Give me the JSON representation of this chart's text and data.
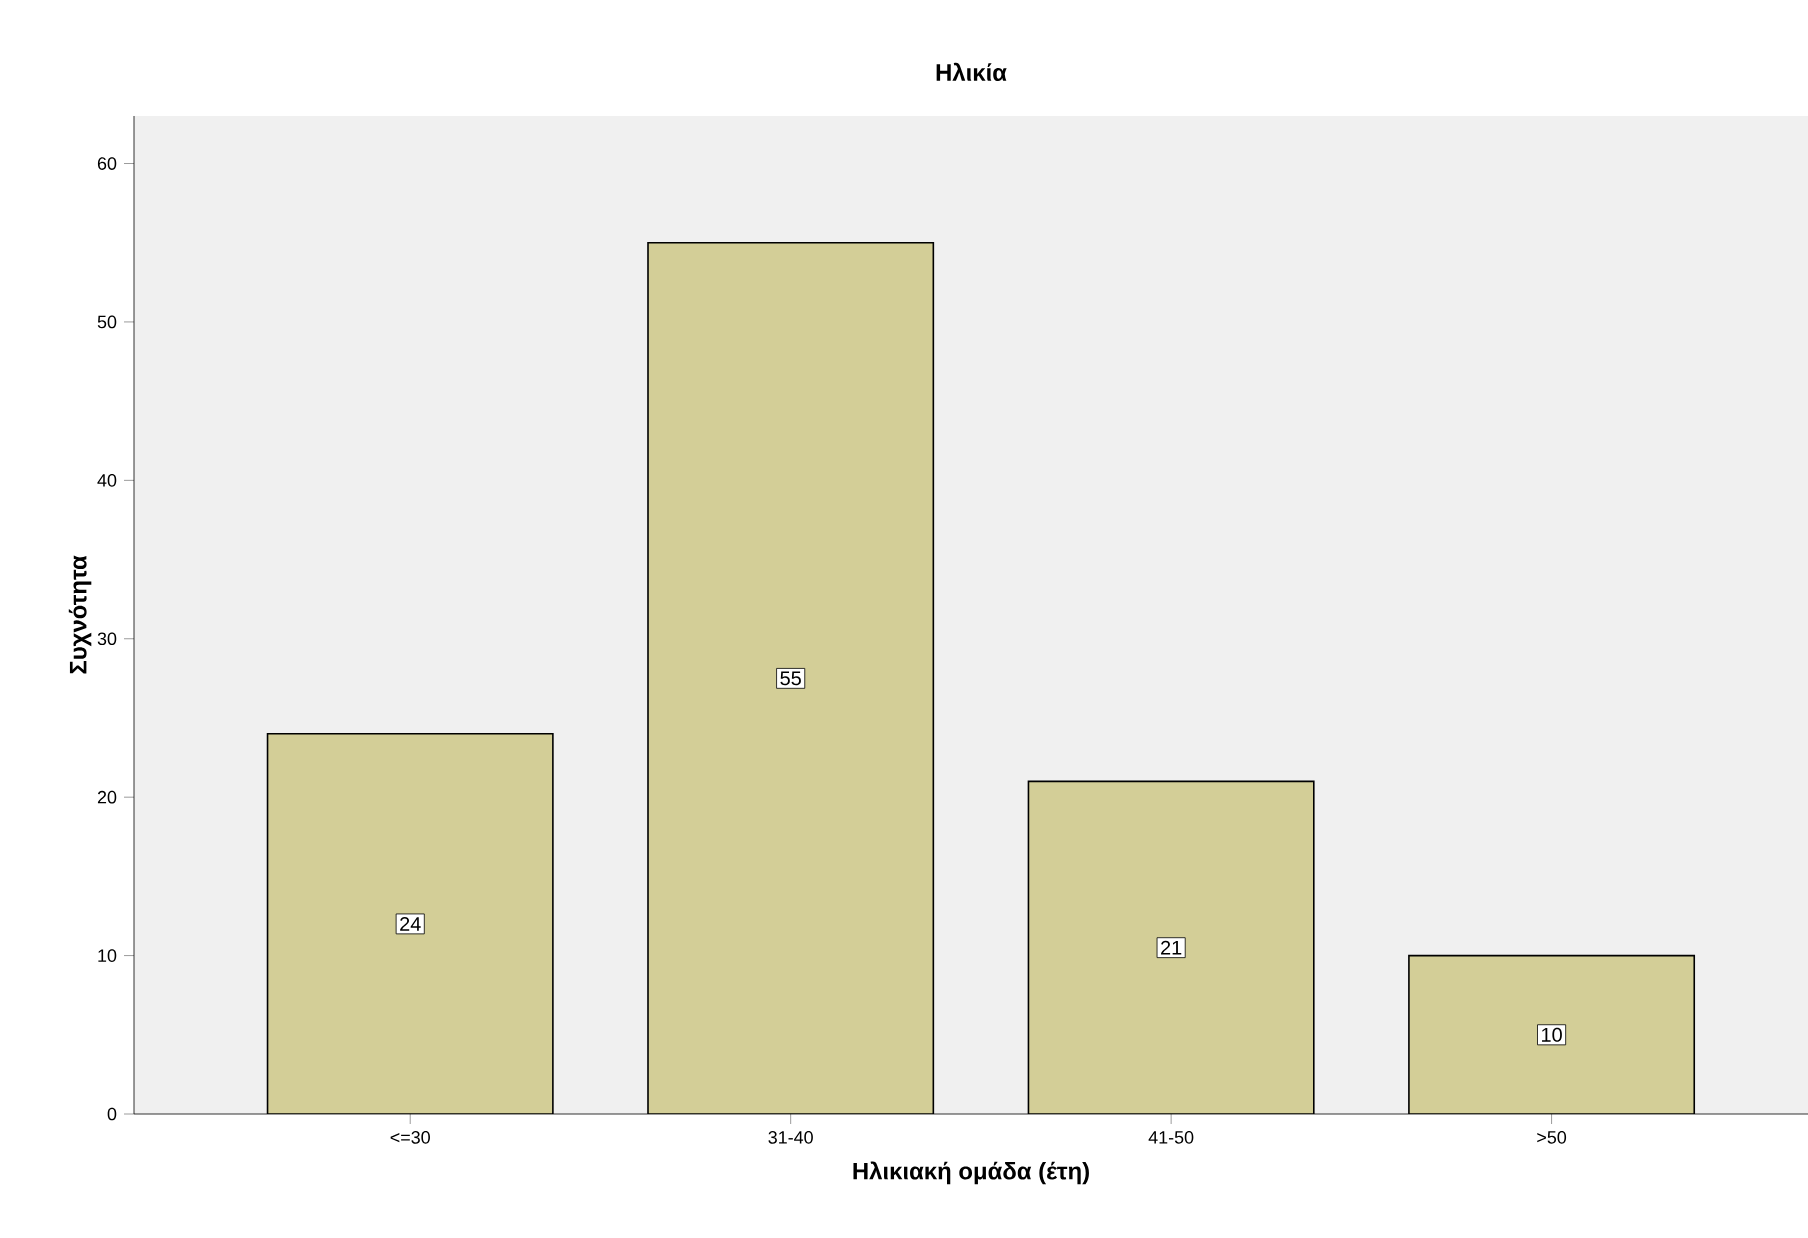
{
  "chart_data": {
    "type": "bar",
    "title": "Ηλικία",
    "xlabel": "Ηλικιακή ομάδα (έτη)",
    "ylabel": "Συχνότητα",
    "categories": [
      "<=30",
      "31-40",
      "41-50",
      ">50"
    ],
    "values": [
      24,
      55,
      21,
      10
    ],
    "value_labels": [
      "24",
      "55",
      "21",
      "10"
    ],
    "color": "#d3ce97",
    "ylim": [
      0,
      63
    ],
    "yticks": [
      0,
      10,
      20,
      30,
      40,
      50,
      60
    ],
    "grid": false
  }
}
